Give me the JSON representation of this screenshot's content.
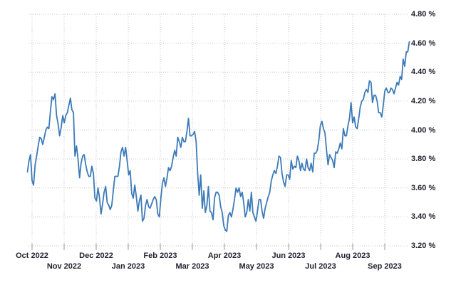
{
  "chart_data": {
    "type": "line",
    "title": "",
    "legend": "none",
    "grid": "dotted",
    "y_axis": {
      "side": "right",
      "unit": "%",
      "min": 3.2,
      "max": 4.8,
      "tick_values": [
        4.8,
        4.6,
        4.4,
        4.2,
        4.0,
        3.8,
        3.6,
        3.4,
        3.2
      ],
      "tick_labels": [
        "4.80 %",
        "4.60 %",
        "4.40 %",
        "4.20 %",
        "4.00 %",
        "3.80 %",
        "3.60 %",
        "3.40 %",
        "3.20 %"
      ]
    },
    "x_axis": {
      "tick_labels": [
        "Oct 2022",
        "Nov 2022",
        "Dec 2022",
        "Jan 2023",
        "Feb 2023",
        "Mar 2023",
        "Apr 2023",
        "May 2023",
        "Jun 2023",
        "Jul 2023",
        "Aug 2023",
        "Sep 2023"
      ],
      "stagger": "alternate-two-rows"
    },
    "series": [
      {
        "values": [
          3.71,
          3.79,
          3.83,
          3.65,
          3.62,
          3.76,
          3.82,
          3.89,
          3.95,
          3.94,
          3.9,
          3.95,
          4.0,
          4.02,
          4.01,
          4.13,
          4.23,
          4.21,
          4.25,
          4.1,
          4.04,
          3.96,
          4.02,
          4.1,
          4.05,
          4.1,
          4.12,
          4.17,
          4.22,
          4.14,
          4.12,
          3.82,
          3.89,
          3.8,
          3.67,
          3.77,
          3.82,
          3.83,
          3.76,
          3.71,
          3.68,
          3.68,
          3.75,
          3.7,
          3.53,
          3.51,
          3.6,
          3.53,
          3.42,
          3.49,
          3.57,
          3.61,
          3.5,
          3.48,
          3.45,
          3.48,
          3.58,
          3.68,
          3.68,
          3.68,
          3.75,
          3.85,
          3.88,
          3.82,
          3.88,
          3.79,
          3.69,
          3.72,
          3.56,
          3.53,
          3.62,
          3.54,
          3.44,
          3.51,
          3.55,
          3.37,
          3.39,
          3.48,
          3.52,
          3.47,
          3.46,
          3.49,
          3.52,
          3.54,
          3.52,
          3.42,
          3.4,
          3.53,
          3.63,
          3.67,
          3.61,
          3.67,
          3.74,
          3.72,
          3.75,
          3.81,
          3.86,
          3.82,
          3.95,
          3.92,
          3.88,
          3.95,
          3.92,
          3.92,
          3.99,
          4.08,
          3.96,
          3.96,
          3.97,
          3.99,
          3.92,
          3.7,
          3.55,
          3.69,
          3.46,
          3.58,
          3.43,
          3.48,
          3.61,
          3.44,
          3.43,
          3.38,
          3.53,
          3.57,
          3.57,
          3.55,
          3.47,
          3.43,
          3.34,
          3.31,
          3.3,
          3.41,
          3.43,
          3.4,
          3.45,
          3.52,
          3.6,
          3.57,
          3.6,
          3.54,
          3.57,
          3.5,
          3.4,
          3.43,
          3.52,
          3.44,
          3.57,
          3.43,
          3.4,
          3.37,
          3.44,
          3.52,
          3.52,
          3.44,
          3.39,
          3.46,
          3.5,
          3.54,
          3.57,
          3.65,
          3.69,
          3.72,
          3.7,
          3.75,
          3.82,
          3.81,
          3.7,
          3.64,
          3.61,
          3.69,
          3.69,
          3.66,
          3.79,
          3.73,
          3.75,
          3.74,
          3.82,
          3.79,
          3.72,
          3.77,
          3.73,
          3.72,
          3.8,
          3.74,
          3.72,
          3.77,
          3.71,
          3.84,
          3.84,
          3.86,
          3.93,
          4.03,
          4.06,
          4.01,
          3.98,
          3.86,
          3.76,
          3.83,
          3.81,
          3.79,
          3.74,
          3.85,
          3.84,
          3.87,
          3.91,
          3.87,
          4.01,
          3.96,
          3.96,
          4.03,
          4.08,
          4.19,
          4.05,
          4.09,
          4.02,
          4.01,
          4.08,
          4.16,
          4.2,
          4.21,
          4.26,
          4.28,
          4.26,
          4.34,
          4.33,
          4.19,
          4.24,
          4.24,
          4.2,
          4.12,
          4.12,
          4.09,
          4.17,
          4.27,
          4.29,
          4.26,
          4.26,
          4.29,
          4.28,
          4.25,
          4.29,
          4.33,
          4.31,
          4.37,
          4.35,
          4.49,
          4.44,
          4.54,
          4.54,
          4.61
        ]
      }
    ],
    "styles": {
      "line_color": "#3c7ab7",
      "grid_color": "#c6c6c6",
      "tick_mark_color": "#9a9a9a",
      "label_color": "#222230",
      "background": "#ffffff"
    }
  }
}
